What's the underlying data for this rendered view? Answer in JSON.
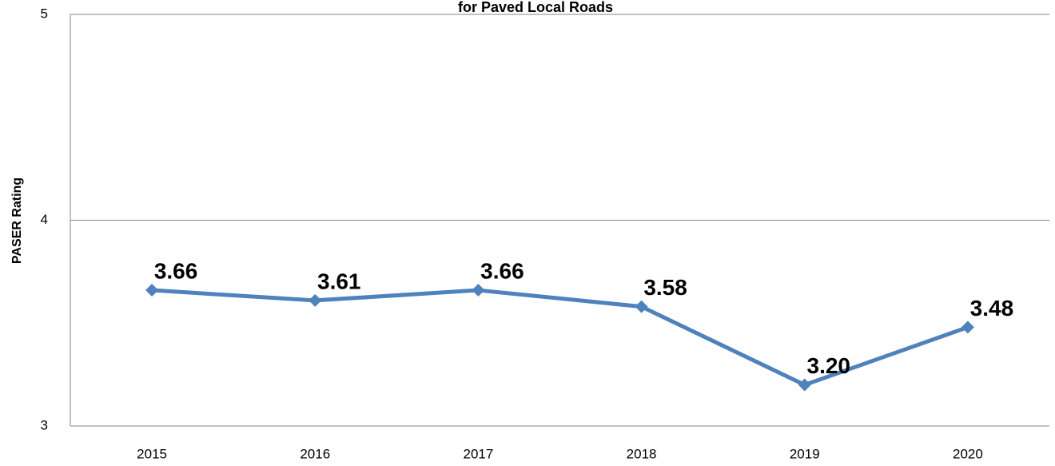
{
  "chart_data": {
    "type": "line",
    "title": "for Paved Local Roads",
    "y_label": "PASER Rating",
    "categories": [
      "2015",
      "2016",
      "2017",
      "2018",
      "2019",
      "2020"
    ],
    "series": [
      {
        "name": "PASER Rating",
        "color": "#4f81bd",
        "values": [
          3.66,
          3.61,
          3.66,
          3.58,
          3.2,
          3.48
        ],
        "value_labels": [
          "3.66",
          "3.61",
          "3.66",
          "3.58",
          "3.20",
          "3.48"
        ]
      }
    ],
    "ylim": [
      3,
      5
    ],
    "yticks": [
      3,
      4,
      5
    ],
    "grid": true
  }
}
